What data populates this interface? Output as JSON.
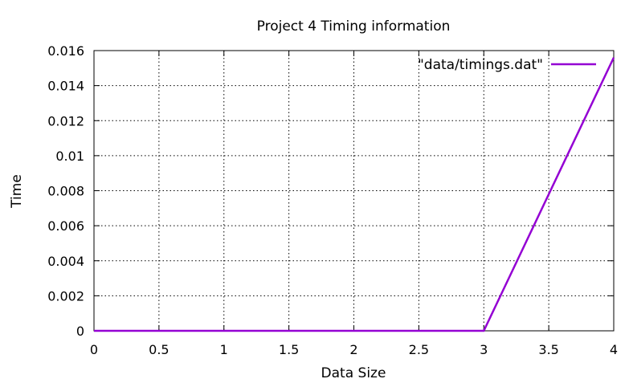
{
  "chart_data": {
    "type": "line",
    "title": "Project 4 Timing information",
    "xlabel": "Data Size",
    "ylabel": "Time",
    "xlim": [
      0,
      4
    ],
    "ylim": [
      0,
      0.016
    ],
    "x_ticks": [
      "0",
      "0.5",
      "1",
      "1.5",
      "2",
      "2.5",
      "3",
      "3.5",
      "4"
    ],
    "y_ticks": [
      "0",
      "0.002",
      "0.004",
      "0.006",
      "0.008",
      "0.01",
      "0.012",
      "0.014",
      "0.016"
    ],
    "grid": true,
    "legend_position": "top-right",
    "series": [
      {
        "name": "\"data/timings.dat\"",
        "color": "#9400d3",
        "x": [
          0,
          1,
          2,
          3,
          4
        ],
        "y": [
          0,
          0,
          0,
          0,
          0.0156
        ]
      }
    ]
  }
}
